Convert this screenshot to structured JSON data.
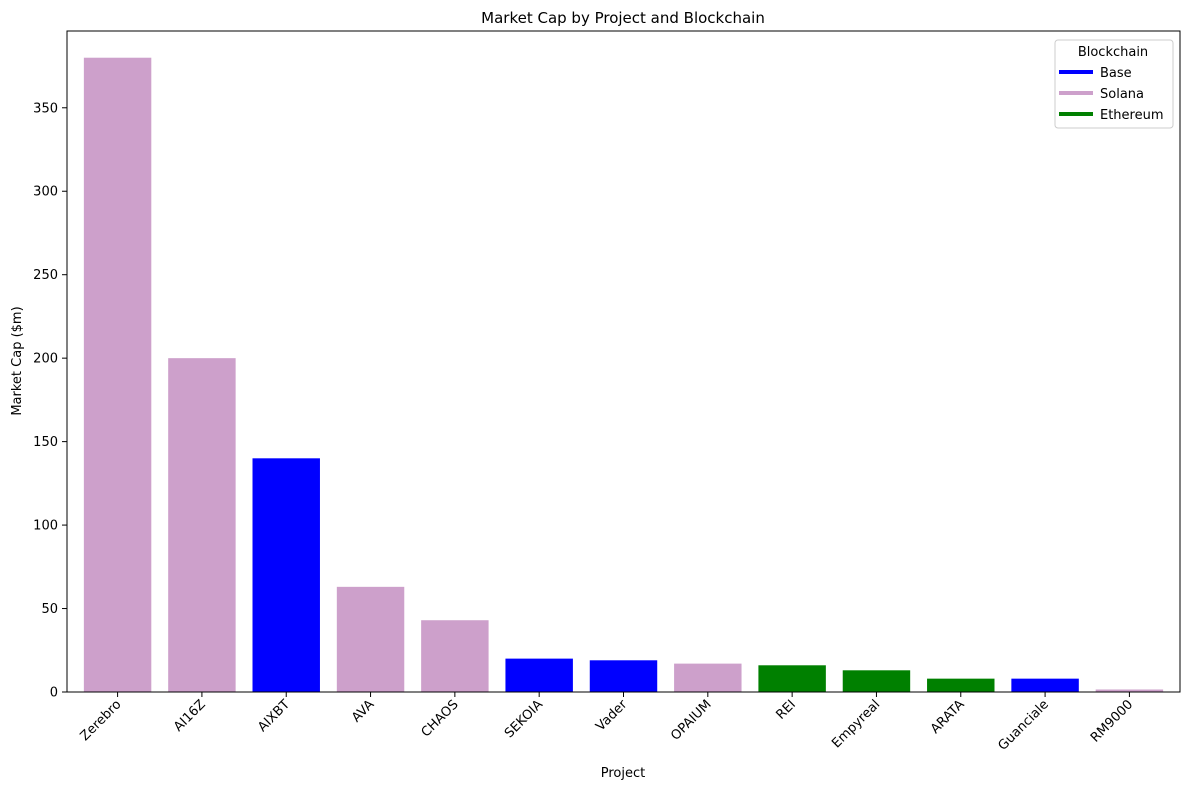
{
  "chart_data": {
    "type": "bar",
    "title": "Market Cap by Project and Blockchain",
    "xlabel": "Project",
    "ylabel": "Market Cap ($m)",
    "ylim": [
      0,
      396
    ],
    "yticks": [
      0,
      50,
      100,
      150,
      200,
      250,
      300,
      350
    ],
    "grid": false,
    "categories": [
      "Zerebro",
      "AI16Z",
      "AIXBT",
      "AVA",
      "CHAOS",
      "SEKOIA",
      "Vader",
      "OPAIUM",
      "REI",
      "Empyreal",
      "ARATA",
      "Guanciale",
      "RM9000"
    ],
    "values": [
      380,
      200,
      140,
      63,
      43,
      20,
      19,
      17,
      16,
      13,
      8,
      8,
      1.5
    ],
    "blockchain": [
      "Solana",
      "Solana",
      "Base",
      "Solana",
      "Solana",
      "Base",
      "Base",
      "Solana",
      "Ethereum",
      "Ethereum",
      "Ethereum",
      "Base",
      "Solana"
    ],
    "legend": {
      "title": "Blockchain",
      "placement": "top-right",
      "entries": [
        {
          "name": "Base",
          "color": "#0000ff"
        },
        {
          "name": "Solana",
          "color": "#cda0cb"
        },
        {
          "name": "Ethereum",
          "color": "#008000"
        }
      ]
    }
  }
}
